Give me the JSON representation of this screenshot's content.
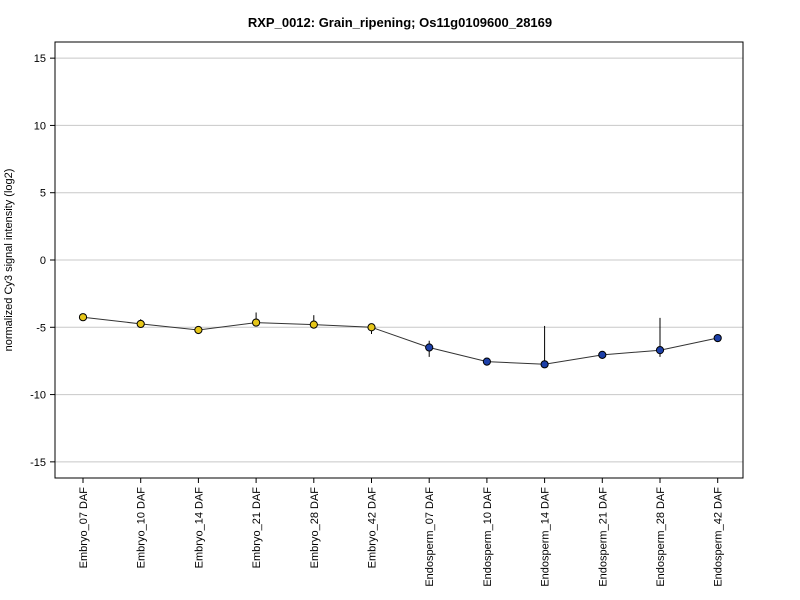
{
  "chart_data": {
    "type": "line",
    "title": "RXP_0012: Grain_ripening; Os11g0109600_28169",
    "xlabel": "",
    "ylabel": "normalized Cy3 signal intensity (log2)",
    "ylim": [
      -16.2,
      16.2
    ],
    "yticks": [
      15,
      10,
      5,
      0,
      -5,
      -10,
      -15
    ],
    "grid": true,
    "categories": [
      "Embryo_07 DAF",
      "Embryo_10 DAF",
      "Embryo_14 DAF",
      "Embryo_21 DAF",
      "Embryo_28 DAF",
      "Embryo_42 DAF",
      "Endosperm_07 DAF",
      "Endosperm_10 DAF",
      "Endosperm_14 DAF",
      "Endosperm_21 DAF",
      "Endosperm_28 DAF",
      "Endosperm_42 DAF"
    ],
    "values": [
      -4.25,
      -4.75,
      -5.2,
      -4.65,
      -4.8,
      -5.0,
      -6.5,
      -7.55,
      -7.75,
      -7.05,
      -6.7,
      -5.8
    ],
    "err_high": [
      -4.1,
      -4.4,
      -5.0,
      -3.9,
      -4.1,
      -4.8,
      -6.0,
      -7.3,
      -4.9,
      -6.9,
      -4.3,
      -5.6
    ],
    "err_low": [
      -4.4,
      -5.0,
      -5.35,
      -4.9,
      -5.0,
      -5.5,
      -7.2,
      -7.8,
      -7.9,
      -7.2,
      -7.2,
      -6.1
    ],
    "point_colors": [
      "#e6c619",
      "#e6c619",
      "#e6c619",
      "#e6c619",
      "#e6c619",
      "#e6c619",
      "#1c3fa8",
      "#1c3fa8",
      "#1c3fa8",
      "#1c3fa8",
      "#1c3fa8",
      "#1c3fa8"
    ],
    "line_color": "#333333"
  }
}
